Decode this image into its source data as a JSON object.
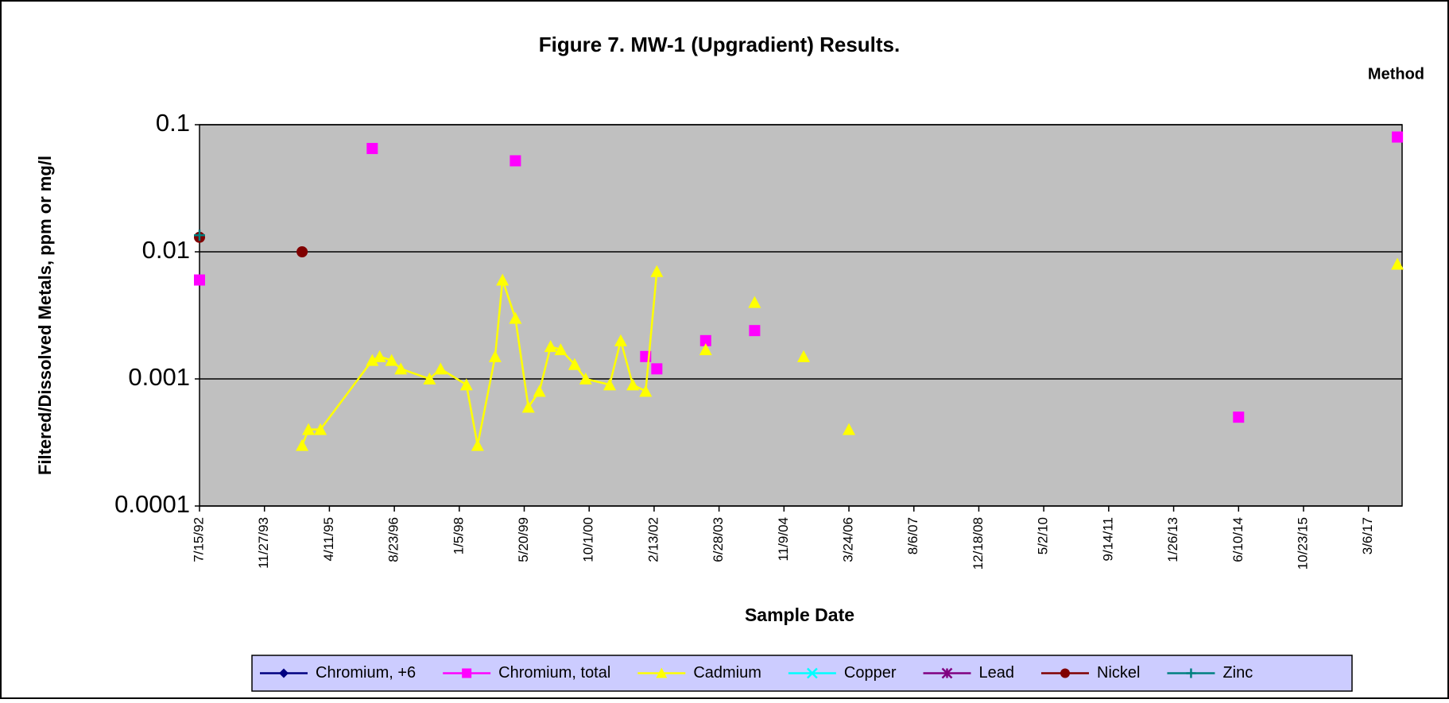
{
  "chart_data": {
    "type": "line",
    "title": "Figure 7.  MW-1 (Upgradient) Results.",
    "corner_note": "Method",
    "x_label": "Sample Date",
    "y_label": "Filtered/Dissolved Metals, ppm or mg/l",
    "log_scale": true,
    "grid": true,
    "background": "#c0c0c0",
    "xlim": [
      "1992-07-15",
      "2017-11-20"
    ],
    "xticks": [
      {
        "value": "1992-07-15",
        "label": "7/15/92"
      },
      {
        "value": "1993-11-27",
        "label": "11/27/93"
      },
      {
        "value": "1995-04-11",
        "label": "4/11/95"
      },
      {
        "value": "1996-08-23",
        "label": "8/23/96"
      },
      {
        "value": "1998-01-05",
        "label": "1/5/98"
      },
      {
        "value": "1999-05-20",
        "label": "5/20/99"
      },
      {
        "value": "2000-10-01",
        "label": "10/1/00"
      },
      {
        "value": "2002-02-13",
        "label": "2/13/02"
      },
      {
        "value": "2003-06-28",
        "label": "6/28/03"
      },
      {
        "value": "2004-11-09",
        "label": "11/9/04"
      },
      {
        "value": "2006-03-24",
        "label": "3/24/06"
      },
      {
        "value": "2007-08-06",
        "label": "8/6/07"
      },
      {
        "value": "2008-12-18",
        "label": "12/18/08"
      },
      {
        "value": "2010-05-02",
        "label": "5/2/10"
      },
      {
        "value": "2011-09-14",
        "label": "9/14/11"
      },
      {
        "value": "2013-01-26",
        "label": "1/26/13"
      },
      {
        "value": "2014-06-10",
        "label": "6/10/14"
      },
      {
        "value": "2015-10-23",
        "label": "10/23/15"
      },
      {
        "value": "2017-03-06",
        "label": "3/6/17"
      }
    ],
    "ylim": [
      0.0001,
      0.1
    ],
    "yticks": [
      0.0001,
      0.001,
      0.01,
      0.1
    ],
    "legend": "bottom",
    "series": [
      {
        "name": "Chromium, +6",
        "color": "#000080",
        "marker": "diamond",
        "x": [],
        "values": []
      },
      {
        "name": "Chromium, total",
        "color": "#ff00ff",
        "marker": "square",
        "x": [
          "1992-07-15",
          null,
          "1996-03-06",
          null,
          "1999-03-13",
          null,
          "2001-12-10",
          null,
          "2002-03-06",
          null,
          "2003-03-17",
          null,
          "2004-03-28",
          null,
          "2014-06-10",
          null,
          "2017-10-15"
        ],
        "values": [
          0.006,
          null,
          0.065,
          null,
          0.052,
          null,
          0.0015,
          null,
          0.0012,
          null,
          0.002,
          null,
          0.0024,
          null,
          0.0005,
          null,
          0.08
        ]
      },
      {
        "name": "Cadmium",
        "color": "#ffff00",
        "marker": "triangle",
        "x": [
          "1994-09-13",
          "1994-11-01",
          "1995-02-01",
          "1996-03-06",
          "1996-05-02",
          "1996-08-02",
          "1996-10-12",
          "1997-05-21",
          "1997-08-14",
          "1998-03-01",
          "1998-05-26",
          "1998-10-08",
          "1998-12-04",
          "1999-03-13",
          "1999-06-21",
          "1999-09-14",
          "1999-12-09",
          "2000-02-25",
          "2000-06-11",
          "2000-09-04",
          "2001-03-08",
          "2001-06-01",
          "2001-09-02",
          "2001-12-10",
          "2002-03-06",
          null,
          "2003-03-17",
          null,
          "2004-03-28",
          null,
          "2005-04-09",
          null,
          "2006-03-24",
          null,
          "2017-10-15"
        ],
        "values": [
          0.0003,
          0.0004,
          0.0004,
          0.0014,
          0.0015,
          0.0014,
          0.0012,
          0.001,
          0.0012,
          0.0009,
          0.0003,
          0.0015,
          0.006,
          0.003,
          0.0006,
          0.0008,
          0.0018,
          0.0017,
          0.0013,
          0.001,
          0.0009,
          0.002,
          0.0009,
          0.0008,
          0.007,
          null,
          0.0017,
          null,
          0.004,
          null,
          0.0015,
          null,
          0.0004,
          null,
          0.008
        ]
      },
      {
        "name": "Copper",
        "color": "#00ffff",
        "marker": "x",
        "x": [],
        "values": []
      },
      {
        "name": "Lead",
        "color": "#800080",
        "marker": "star",
        "x": [],
        "values": []
      },
      {
        "name": "Nickel",
        "color": "#800000",
        "marker": "circle",
        "x": [
          "1992-07-15",
          null,
          "1994-09-13"
        ],
        "values": [
          0.013,
          null,
          0.01
        ]
      },
      {
        "name": "Zinc",
        "color": "#008080",
        "marker": "plus",
        "x": [
          "1992-07-15"
        ],
        "values": [
          0.0135
        ]
      }
    ]
  }
}
